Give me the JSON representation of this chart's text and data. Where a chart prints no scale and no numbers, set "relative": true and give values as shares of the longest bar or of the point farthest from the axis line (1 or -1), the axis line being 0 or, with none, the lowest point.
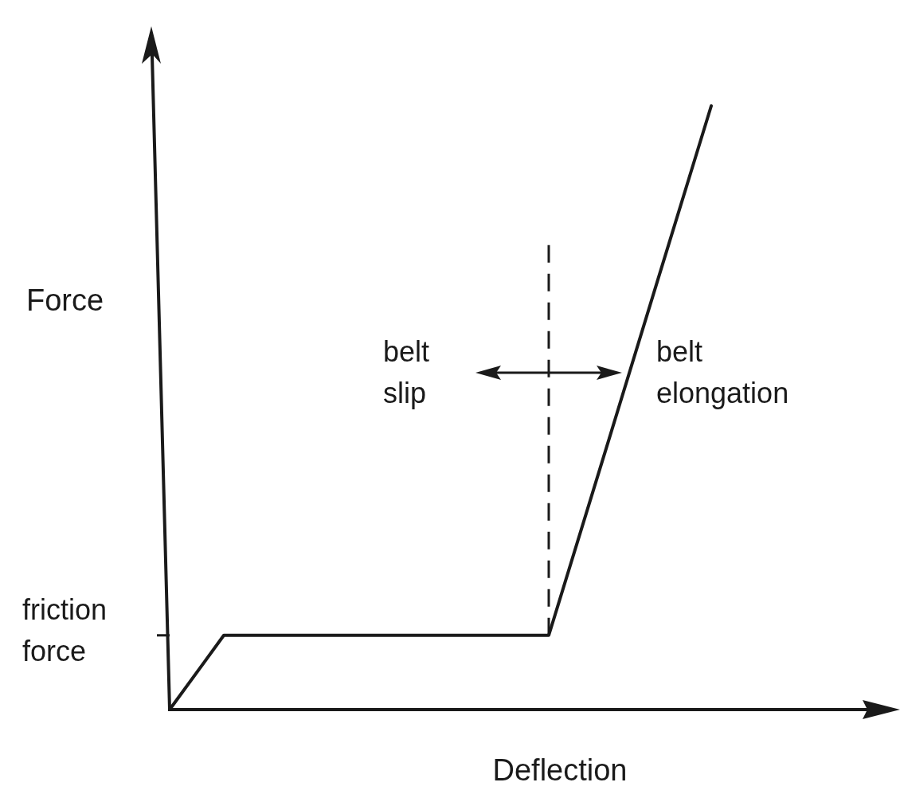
{
  "chart_data": {
    "type": "line",
    "relative": true,
    "xlabel": "Deflection",
    "ylabel": "Force",
    "categories": [
      null,
      null,
      null,
      null,
      null,
      null,
      null,
      null,
      null,
      null,
      null
    ],
    "series": [
      {
        "color": "#1a1a1a",
        "values": [
          0,
          0.123,
          0.123,
          0.123,
          0.123,
          0.123,
          0.123,
          0.123,
          0.415,
          0.708,
          1.0
        ]
      }
    ],
    "marker": "none",
    "line_style": "solid",
    "annotations": [
      "belt slip",
      "belt elongation",
      "friction force"
    ]
  }
}
